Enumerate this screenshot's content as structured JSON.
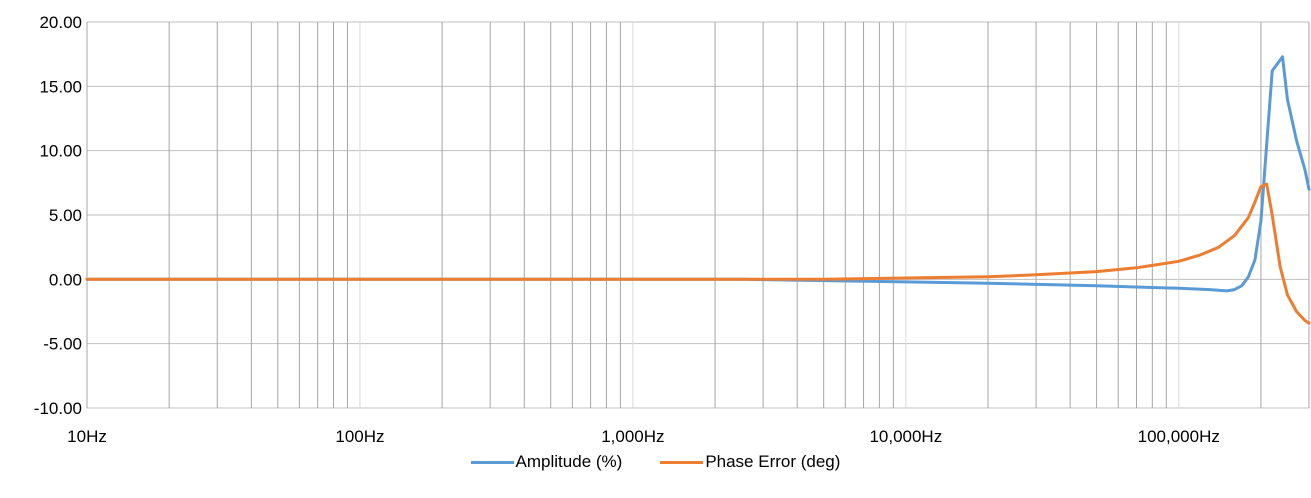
{
  "chart_data": {
    "type": "line",
    "title": "",
    "xlabel": "",
    "ylabel": "",
    "x_scale": "log",
    "xlim": [
      10,
      300000
    ],
    "ylim": [
      -10,
      20
    ],
    "y_ticks": [
      -10,
      -5,
      0,
      5,
      10,
      15,
      20
    ],
    "y_tick_labels": [
      "-10.00",
      "-5.00",
      "0.00",
      "5.00",
      "10.00",
      "15.00",
      "20.00"
    ],
    "x_ticks": [
      10,
      100,
      1000,
      10000,
      100000
    ],
    "x_tick_labels": [
      "10Hz",
      "100Hz",
      "1,000Hz",
      "10,000Hz",
      "100,000Hz"
    ],
    "grid": true,
    "legend_position": "bottom",
    "series": [
      {
        "name": "Amplitude (%)",
        "color": "#5B9BD5",
        "x": [
          10,
          100,
          1000,
          2500,
          5000,
          10000,
          20000,
          50000,
          100000,
          130000,
          150000,
          160000,
          170000,
          180000,
          190000,
          200000,
          210000,
          220000,
          240000,
          250000,
          270000,
          290000,
          300000
        ],
        "y": [
          0,
          0,
          0,
          0,
          -0.1,
          -0.2,
          -0.3,
          -0.5,
          -0.7,
          -0.8,
          -0.9,
          -0.8,
          -0.5,
          0.2,
          1.5,
          4.5,
          10.5,
          16.2,
          17.3,
          14.0,
          10.8,
          8.5,
          7.0
        ]
      },
      {
        "name": "Phase Error (deg)",
        "color": "#ED7D31",
        "x": [
          10,
          100,
          1000,
          5000,
          10000,
          20000,
          30000,
          50000,
          70000,
          100000,
          120000,
          140000,
          160000,
          180000,
          190000,
          200000,
          210000,
          220000,
          235000,
          250000,
          270000,
          290000,
          300000
        ],
        "y": [
          0,
          0,
          0,
          0,
          0.1,
          0.2,
          0.35,
          0.6,
          0.9,
          1.4,
          1.9,
          2.5,
          3.4,
          4.8,
          6.0,
          7.2,
          7.4,
          5.0,
          1.0,
          -1.2,
          -2.5,
          -3.2,
          -3.4
        ]
      }
    ]
  }
}
